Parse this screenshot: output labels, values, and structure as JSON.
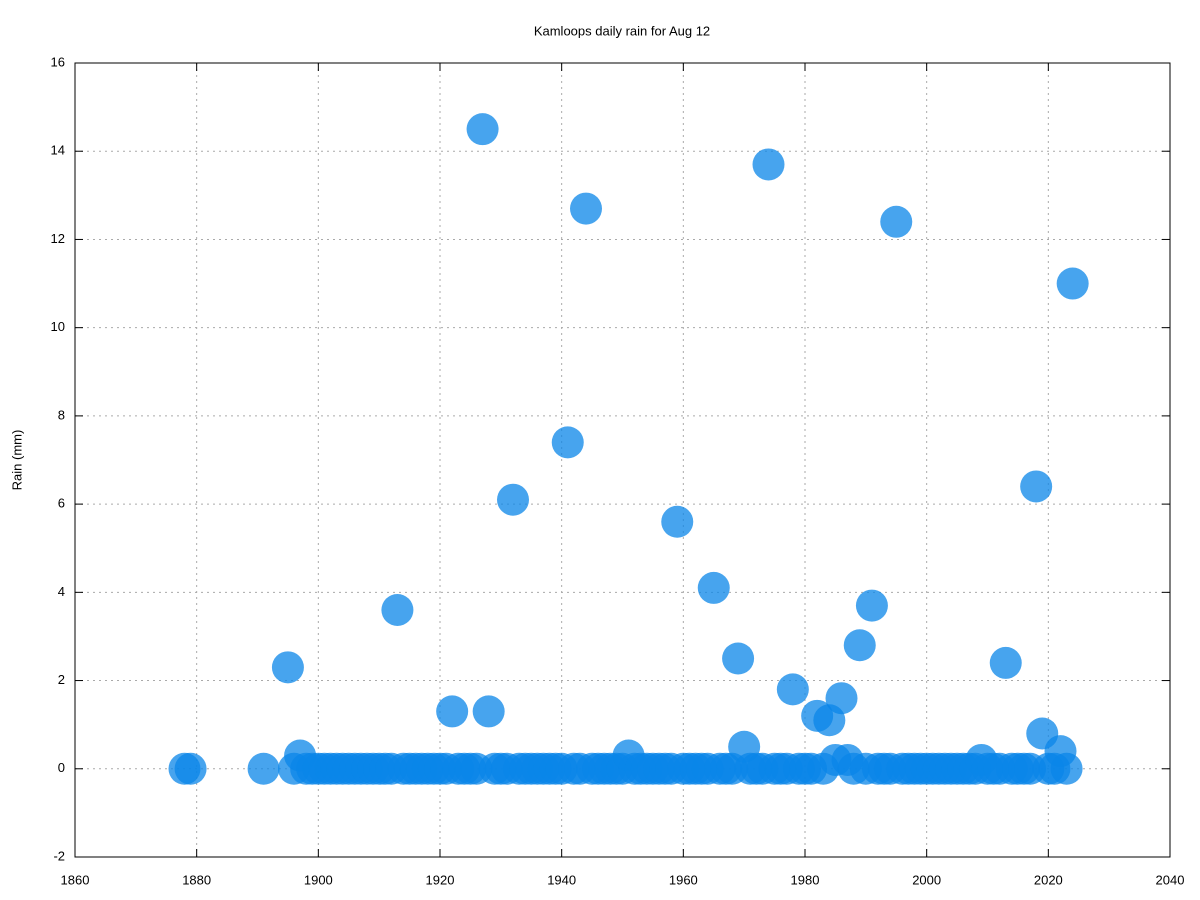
{
  "chart_data": {
    "type": "scatter",
    "title": "Kamloops daily rain for Aug 12",
    "y_label": "Rain (mm)",
    "color": "#0a86e8",
    "grid": true,
    "xlim": [
      1860,
      2040
    ],
    "xticks": [
      1860,
      1880,
      1900,
      1920,
      1940,
      1960,
      1980,
      2000,
      2020,
      2040
    ],
    "ylim": [
      -2,
      16
    ],
    "yticks": [
      -2,
      0,
      2,
      4,
      6,
      8,
      10,
      12,
      14,
      16
    ],
    "x": [
      1878,
      1879,
      1891,
      1895,
      1896,
      1897,
      1898,
      1899,
      1900,
      1901,
      1902,
      1903,
      1904,
      1905,
      1906,
      1907,
      1908,
      1909,
      1910,
      1911,
      1912,
      1913,
      1914,
      1915,
      1916,
      1917,
      1918,
      1919,
      1920,
      1921,
      1922,
      1923,
      1924,
      1925,
      1926,
      1927,
      1928,
      1929,
      1930,
      1931,
      1932,
      1933,
      1934,
      1935,
      1936,
      1937,
      1938,
      1939,
      1940,
      1941,
      1942,
      1943,
      1944,
      1945,
      1946,
      1947,
      1948,
      1949,
      1950,
      1951,
      1952,
      1953,
      1954,
      1955,
      1956,
      1957,
      1958,
      1959,
      1960,
      1961,
      1962,
      1963,
      1964,
      1965,
      1966,
      1967,
      1968,
      1969,
      1970,
      1971,
      1972,
      1973,
      1974,
      1975,
      1976,
      1977,
      1978,
      1979,
      1980,
      1981,
      1982,
      1983,
      1984,
      1985,
      1986,
      1987,
      1988,
      1989,
      1990,
      1991,
      1992,
      1993,
      1994,
      1995,
      1996,
      1997,
      1998,
      1999,
      2000,
      2001,
      2002,
      2003,
      2004,
      2005,
      2006,
      2007,
      2008,
      2009,
      2010,
      2011,
      2012,
      2013,
      2014,
      2015,
      2016,
      2017,
      2018,
      2019,
      2020,
      2021,
      2022,
      2023,
      2024
    ],
    "values": [
      0,
      0,
      0,
      2.3,
      0,
      0.3,
      0,
      0,
      0,
      0,
      0,
      0,
      0,
      0,
      0,
      0,
      0,
      0,
      0,
      0,
      0,
      3.6,
      0,
      0,
      0,
      0,
      0,
      0,
      0,
      0,
      1.3,
      0,
      0,
      0,
      0,
      14.5,
      1.3,
      0,
      0,
      0,
      6.1,
      0,
      0,
      0,
      0,
      0,
      0,
      0,
      0,
      7.4,
      0,
      0,
      12.7,
      0,
      0,
      0,
      0,
      0,
      0,
      0.3,
      0,
      0,
      0,
      0,
      0,
      0,
      0,
      5.6,
      0,
      0,
      0,
      0,
      0,
      4.1,
      0,
      0,
      0,
      2.5,
      0.5,
      0,
      0,
      0,
      13.7,
      0,
      0,
      0,
      1.8,
      0,
      0,
      0,
      1.2,
      0,
      1.1,
      0.2,
      1.6,
      0.2,
      0,
      2.8,
      0,
      3.7,
      0,
      0,
      0,
      12.4,
      0,
      0,
      0,
      0,
      0,
      0,
      0,
      0,
      0,
      0,
      0,
      0,
      0,
      0.2,
      0,
      0,
      0,
      2.4,
      0,
      0,
      0,
      0,
      6.4,
      0.8,
      0,
      0,
      0.4,
      0,
      11.0
    ]
  }
}
